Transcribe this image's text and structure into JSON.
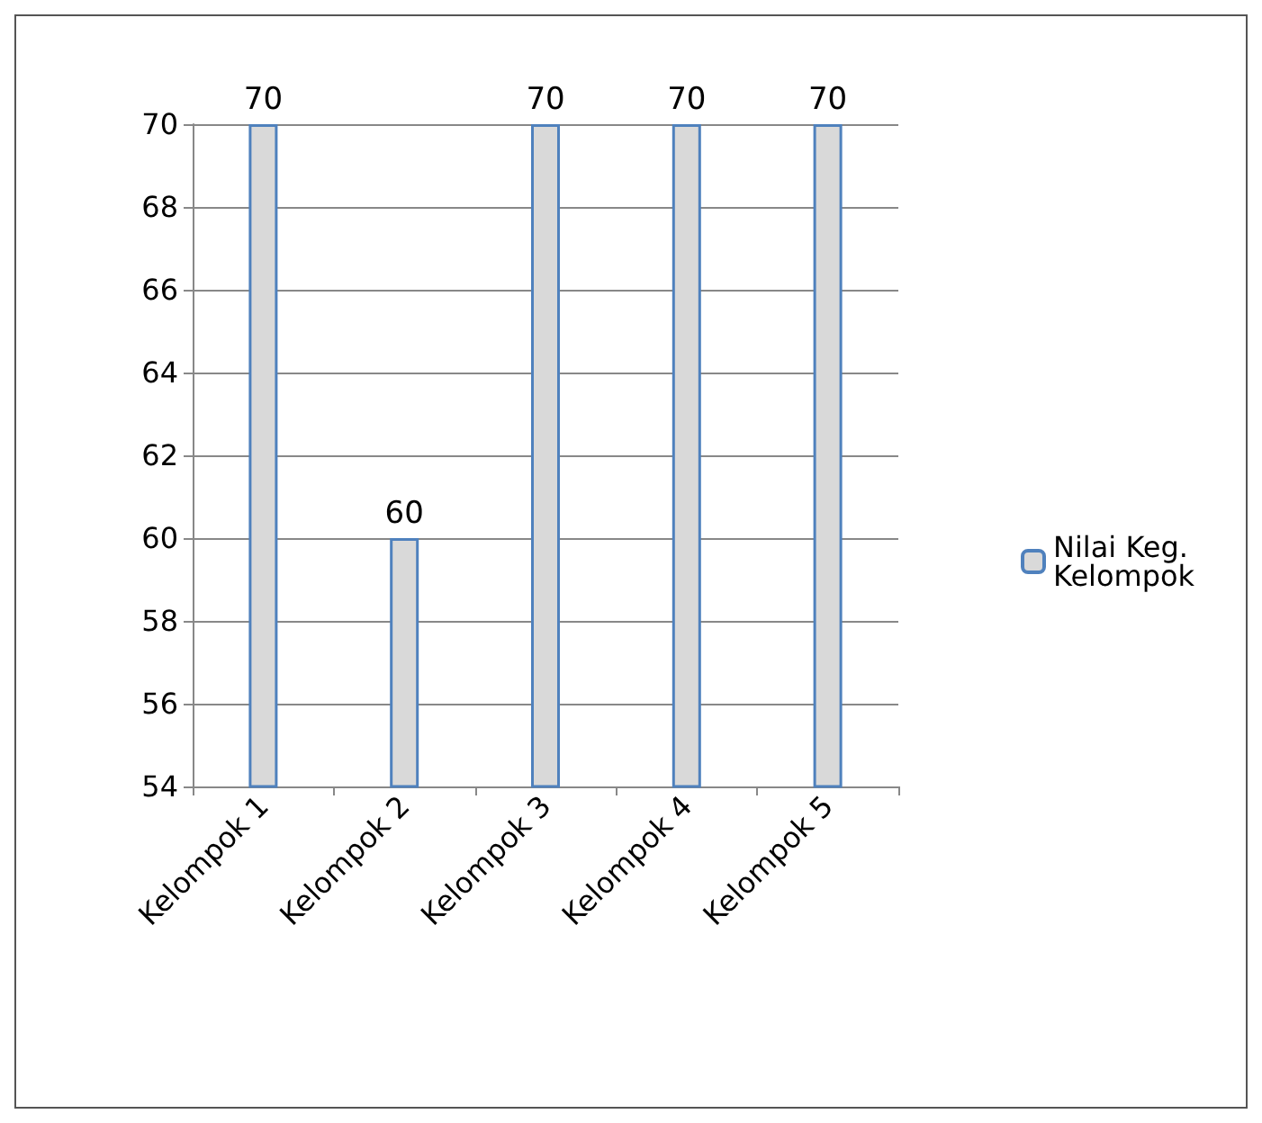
{
  "chart_data": {
    "type": "bar",
    "categories": [
      "Kelompok 1",
      "Kelompok 2",
      "Kelompok 3",
      "Kelompok 4",
      "Kelompok 5"
    ],
    "series": [
      {
        "name": "Nilai Keg. Kelompok",
        "color": "#d9d9d9",
        "values": [
          70,
          60,
          70,
          70,
          70
        ]
      }
    ],
    "ylim": [
      54,
      70
    ],
    "yticks": [
      54,
      56,
      58,
      60,
      62,
      64,
      66,
      68,
      70
    ],
    "grid": "y",
    "legend": "right",
    "data_labels": true
  }
}
